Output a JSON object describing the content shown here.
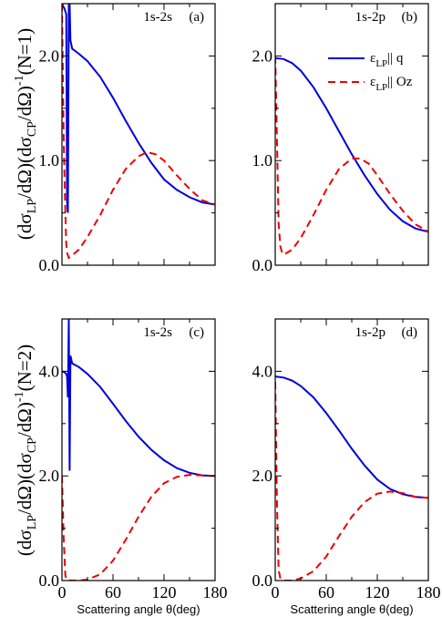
{
  "colors": {
    "series_q": "#0000dd",
    "series_oz": "#ee0000",
    "axis": "#000000"
  },
  "chart_data": [
    {
      "id": "a",
      "type": "line",
      "panel_title": "1s-2s",
      "panel_tag": "(a)",
      "ylabel_text": "(dσLP/dΩ)(dσCP/dΩ)-1(N=1)",
      "xlim": [
        0,
        180
      ],
      "ylim": [
        0,
        2.5
      ],
      "yticks": [
        0,
        1,
        2
      ],
      "ytick_labels": [
        "0.0",
        "1.0",
        "2.0"
      ],
      "xticks": [
        0,
        60,
        120,
        180
      ],
      "xtick_labels": [
        "",
        "",
        "",
        ""
      ],
      "series": [
        {
          "key": "q",
          "points": [
            [
              0,
              2.5
            ],
            [
              3,
              2.45
            ],
            [
              5,
              2.4
            ],
            [
              6,
              0.6
            ],
            [
              7,
              0.5
            ],
            [
              8,
              2.5
            ],
            [
              9,
              2.5
            ],
            [
              10,
              2.15
            ],
            [
              12,
              2.07
            ],
            [
              20,
              2.02
            ],
            [
              30,
              1.95
            ],
            [
              45,
              1.8
            ],
            [
              60,
              1.6
            ],
            [
              75,
              1.38
            ],
            [
              90,
              1.17
            ],
            [
              105,
              0.98
            ],
            [
              120,
              0.82
            ],
            [
              135,
              0.72
            ],
            [
              150,
              0.65
            ],
            [
              165,
              0.6
            ],
            [
              180,
              0.58
            ]
          ]
        },
        {
          "key": "oz",
          "points": [
            [
              0,
              2.5
            ],
            [
              2,
              1.2
            ],
            [
              4,
              0.5
            ],
            [
              5,
              0.2
            ],
            [
              6,
              0.12
            ],
            [
              8,
              0.07
            ],
            [
              10,
              0.08
            ],
            [
              20,
              0.15
            ],
            [
              30,
              0.27
            ],
            [
              45,
              0.48
            ],
            [
              60,
              0.72
            ],
            [
              75,
              0.92
            ],
            [
              90,
              1.04
            ],
            [
              100,
              1.08
            ],
            [
              110,
              1.06
            ],
            [
              120,
              1.0
            ],
            [
              135,
              0.86
            ],
            [
              150,
              0.73
            ],
            [
              165,
              0.62
            ],
            [
              180,
              0.58
            ]
          ]
        }
      ]
    },
    {
      "id": "b",
      "type": "line",
      "panel_title": "1s-2p",
      "panel_tag": "(b)",
      "ylabel_text": "",
      "xlim": [
        0,
        180
      ],
      "ylim": [
        0,
        2.5
      ],
      "yticks": [
        0,
        1,
        2
      ],
      "ytick_labels": [
        "0.0",
        "1.0",
        "2.0"
      ],
      "xticks": [
        0,
        60,
        120,
        180
      ],
      "xtick_labels": [
        "",
        "",
        "",
        ""
      ],
      "series": [
        {
          "key": "q",
          "points": [
            [
              0,
              1.98
            ],
            [
              10,
              1.97
            ],
            [
              20,
              1.93
            ],
            [
              30,
              1.86
            ],
            [
              45,
              1.7
            ],
            [
              60,
              1.5
            ],
            [
              75,
              1.28
            ],
            [
              90,
              1.06
            ],
            [
              105,
              0.86
            ],
            [
              120,
              0.68
            ],
            [
              135,
              0.53
            ],
            [
              150,
              0.42
            ],
            [
              165,
              0.35
            ],
            [
              180,
              0.32
            ]
          ]
        },
        {
          "key": "oz",
          "points": [
            [
              0,
              2.0
            ],
            [
              2,
              1.2
            ],
            [
              4,
              0.4
            ],
            [
              6,
              0.18
            ],
            [
              8,
              0.12
            ],
            [
              10,
              0.1
            ],
            [
              20,
              0.15
            ],
            [
              30,
              0.26
            ],
            [
              45,
              0.48
            ],
            [
              60,
              0.72
            ],
            [
              75,
              0.92
            ],
            [
              90,
              1.02
            ],
            [
              100,
              1.02
            ],
            [
              110,
              0.97
            ],
            [
              120,
              0.86
            ],
            [
              135,
              0.68
            ],
            [
              150,
              0.52
            ],
            [
              165,
              0.39
            ],
            [
              180,
              0.32
            ]
          ]
        }
      ],
      "legend": {
        "placement": "top-right",
        "entries": [
          {
            "key": "q",
            "label_main": "ε",
            "label_sub": "LP",
            "label_rest": "|| q"
          },
          {
            "key": "oz",
            "label_main": "ε",
            "label_sub": "LP",
            "label_rest": "|| Oz"
          }
        ]
      }
    },
    {
      "id": "c",
      "type": "line",
      "panel_title": "1s-2s",
      "panel_tag": "(c)",
      "ylabel_text": "(dσLP/dΩ)(dσCP/dΩ)-1(N=2)",
      "xlim": [
        0,
        180
      ],
      "ylim": [
        0,
        5.0
      ],
      "yticks": [
        0,
        2,
        4
      ],
      "ytick_labels": [
        "0.0",
        "2.0",
        "4.0"
      ],
      "xticks": [
        0,
        60,
        120,
        180
      ],
      "xtick_labels": [
        "0",
        "60",
        "120",
        "180"
      ],
      "series": [
        {
          "key": "q",
          "points": [
            [
              0,
              4.0
            ],
            [
              3,
              3.98
            ],
            [
              5,
              3.95
            ],
            [
              6,
              3.9
            ],
            [
              7,
              3.5
            ],
            [
              8,
              5.0
            ],
            [
              9,
              2.1
            ],
            [
              10,
              4.3
            ],
            [
              12,
              4.15
            ],
            [
              20,
              4.08
            ],
            [
              30,
              3.95
            ],
            [
              45,
              3.7
            ],
            [
              60,
              3.38
            ],
            [
              75,
              3.05
            ],
            [
              90,
              2.75
            ],
            [
              105,
              2.5
            ],
            [
              120,
              2.3
            ],
            [
              135,
              2.15
            ],
            [
              150,
              2.06
            ],
            [
              165,
              2.01
            ],
            [
              180,
              2.0
            ]
          ]
        },
        {
          "key": "oz",
          "points": [
            [
              0,
              2.0
            ],
            [
              2,
              0.8
            ],
            [
              4,
              0.1
            ],
            [
              5,
              0.02
            ],
            [
              10,
              0.0
            ],
            [
              20,
              0.0
            ],
            [
              30,
              0.02
            ],
            [
              45,
              0.12
            ],
            [
              60,
              0.38
            ],
            [
              75,
              0.78
            ],
            [
              90,
              1.22
            ],
            [
              105,
              1.6
            ],
            [
              120,
              1.86
            ],
            [
              135,
              1.98
            ],
            [
              150,
              2.02
            ],
            [
              165,
              2.01
            ],
            [
              180,
              2.0
            ]
          ]
        }
      ]
    },
    {
      "id": "d",
      "type": "line",
      "panel_title": "1s-2p",
      "panel_tag": "(d)",
      "ylabel_text": "",
      "xlim": [
        0,
        180
      ],
      "ylim": [
        0,
        5.0
      ],
      "yticks": [
        0,
        2,
        4
      ],
      "ytick_labels": [
        "0.0",
        "2.0",
        "4.0"
      ],
      "xticks": [
        0,
        60,
        120,
        180
      ],
      "xtick_labels": [
        "0",
        "60",
        "120",
        "180"
      ],
      "series": [
        {
          "key": "q",
          "points": [
            [
              0,
              3.9
            ],
            [
              10,
              3.88
            ],
            [
              20,
              3.82
            ],
            [
              30,
              3.72
            ],
            [
              45,
              3.5
            ],
            [
              60,
              3.2
            ],
            [
              75,
              2.87
            ],
            [
              90,
              2.52
            ],
            [
              105,
              2.2
            ],
            [
              120,
              1.93
            ],
            [
              135,
              1.75
            ],
            [
              150,
              1.65
            ],
            [
              165,
              1.6
            ],
            [
              180,
              1.58
            ]
          ]
        },
        {
          "key": "oz",
          "points": [
            [
              0,
              3.8
            ],
            [
              2,
              1.5
            ],
            [
              4,
              0.2
            ],
            [
              6,
              0.04
            ],
            [
              10,
              0.0
            ],
            [
              20,
              0.0
            ],
            [
              30,
              0.04
            ],
            [
              45,
              0.18
            ],
            [
              60,
              0.46
            ],
            [
              75,
              0.85
            ],
            [
              90,
              1.22
            ],
            [
              105,
              1.5
            ],
            [
              120,
              1.66
            ],
            [
              135,
              1.7
            ],
            [
              150,
              1.67
            ],
            [
              165,
              1.6
            ],
            [
              180,
              1.58
            ]
          ]
        }
      ]
    }
  ],
  "xlabel": {
    "text_main": "Scattering angle θ(deg)"
  }
}
